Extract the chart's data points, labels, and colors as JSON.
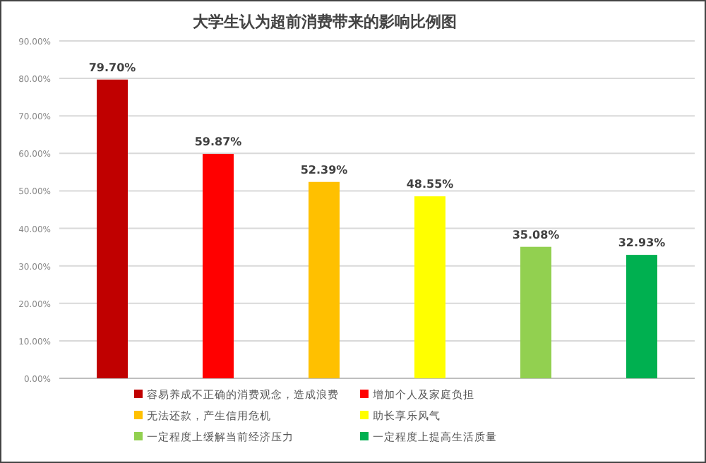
{
  "chart_data": {
    "type": "bar",
    "title": "大学生认为超前消费带来的影响比例图",
    "categories": [
      null,
      null,
      null,
      null,
      null,
      null
    ],
    "series": [
      {
        "name": "容易养成不正确的消费观念，造成浪费",
        "color": "#c00000",
        "values": [
          79.7,
          null,
          null,
          null,
          null,
          null
        ],
        "value_labels": [
          "79.70%",
          null,
          null,
          null,
          null,
          null
        ]
      },
      {
        "name": "增加个人及家庭负担",
        "color": "#ff0000",
        "values": [
          null,
          59.87,
          null,
          null,
          null,
          null
        ],
        "value_labels": [
          null,
          "59.87%",
          null,
          null,
          null,
          null
        ]
      },
      {
        "name": "无法还款，产生信用危机",
        "color": "#ffc000",
        "values": [
          null,
          null,
          52.39,
          null,
          null,
          null
        ],
        "value_labels": [
          null,
          null,
          "52.39%",
          null,
          null,
          null
        ]
      },
      {
        "name": "助长享乐风气",
        "color": "#ffff00",
        "values": [
          null,
          null,
          null,
          48.55,
          null,
          null
        ],
        "value_labels": [
          null,
          null,
          null,
          "48.55%",
          null,
          null
        ]
      },
      {
        "name": "一定程度上缓解当前经济压力",
        "color": "#92d050",
        "values": [
          null,
          null,
          null,
          null,
          35.08,
          null
        ],
        "value_labels": [
          null,
          null,
          null,
          null,
          "35.08%",
          null
        ]
      },
      {
        "name": "一定程度上提高生活质量",
        "color": "#00b050",
        "values": [
          null,
          null,
          null,
          null,
          null,
          32.93
        ],
        "value_labels": [
          null,
          null,
          null,
          null,
          null,
          "32.93%"
        ]
      }
    ],
    "ylim": [
      0,
      90
    ],
    "yticks": [
      {
        "value": 0,
        "label": "0.00%"
      },
      {
        "value": 10,
        "label": "10.00%"
      },
      {
        "value": 20,
        "label": "20.00%"
      },
      {
        "value": 30,
        "label": "30.00%"
      },
      {
        "value": 40,
        "label": "40.00%"
      },
      {
        "value": 50,
        "label": "50.00%"
      },
      {
        "value": 60,
        "label": "60.00%"
      },
      {
        "value": 70,
        "label": "70.00%"
      },
      {
        "value": 80,
        "label": "80.00%"
      },
      {
        "value": 90,
        "label": "90.00%"
      }
    ],
    "grid": "y",
    "legend": "bottom"
  }
}
